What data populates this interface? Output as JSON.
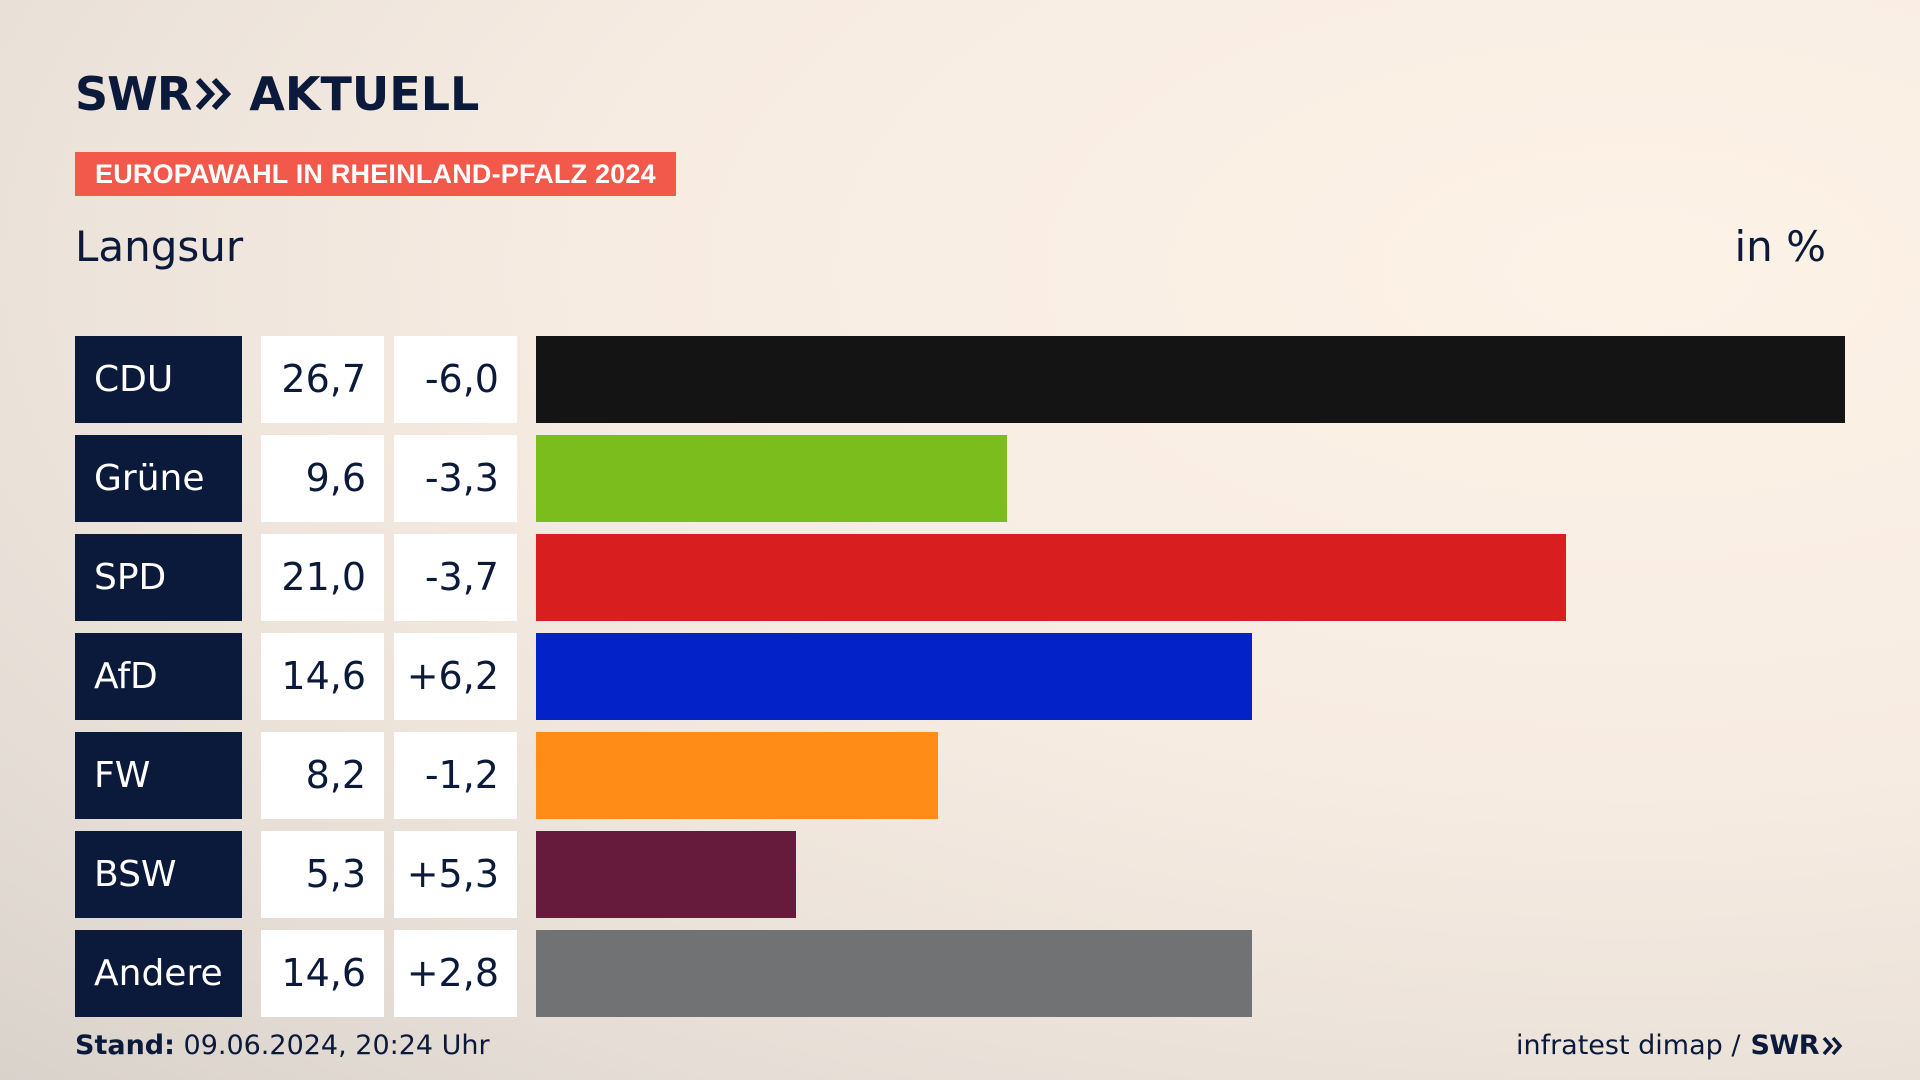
{
  "header": {
    "logo_brand": "SWR",
    "logo_product": "AKTUELL",
    "banner": "EUROPAWAHL IN RHEINLAND-PFALZ 2024",
    "place": "Langsur",
    "unit": "in %"
  },
  "footer": {
    "stand_label": "Stand:",
    "stand_value": "09.06.2024, 20:24 Uhr",
    "source": "infratest dimap /",
    "source_brand": "SWR"
  },
  "colors": {
    "navy": "#0b1a3a",
    "banner": "#f2594b"
  },
  "chart_data": {
    "type": "bar",
    "orientation": "horizontal",
    "title": "Langsur",
    "unit": "in %",
    "categories": [
      "CDU",
      "Grüne",
      "SPD",
      "AfD",
      "FW",
      "BSW",
      "Andere"
    ],
    "values": [
      26.7,
      9.6,
      21.0,
      14.6,
      8.2,
      5.3,
      14.6
    ],
    "value_labels": [
      "26,7",
      "9,6",
      "21,0",
      "14,6",
      "8,2",
      "5,3",
      "14,6"
    ],
    "change_labels": [
      "-6,0",
      "-3,3",
      "-3,7",
      "+6,2",
      "-1,2",
      "+5,3",
      "+2,8"
    ],
    "changes": [
      -6.0,
      -3.3,
      -3.7,
      6.2,
      -1.2,
      5.3,
      2.8
    ],
    "colors": [
      "#141414",
      "#7cbd1e",
      "#d81e1e",
      "#0322c8",
      "#ff8c16",
      "#661a3c",
      "#717273"
    ],
    "xlim": [
      0,
      26.7
    ]
  }
}
